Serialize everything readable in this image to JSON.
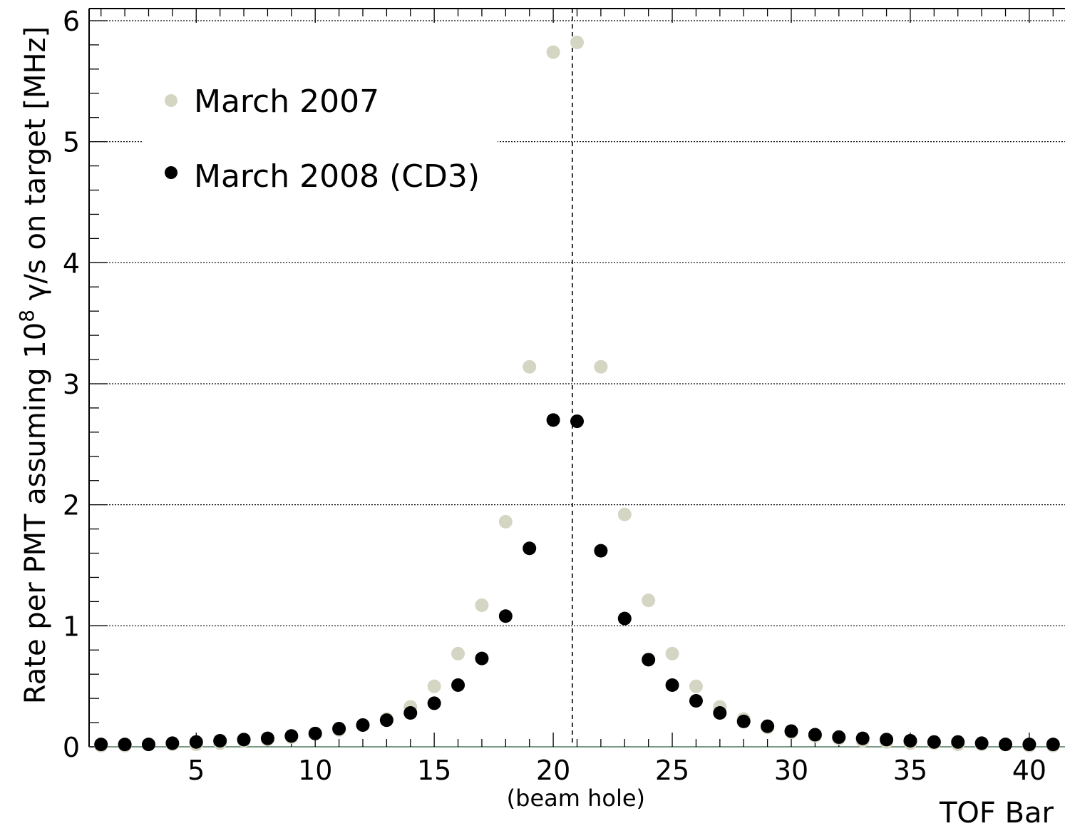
{
  "chart_data": {
    "type": "scatter",
    "xlabel": "TOF Bar",
    "ylabel_prefix": "Rate per PMT assuming 10",
    "ylabel_sup": "8",
    "ylabel_suffix": " γ/s on target [MHz]",
    "xlim": [
      0.5,
      41.5
    ],
    "ylim": [
      0,
      6.1
    ],
    "x_ticks": [
      5,
      10,
      15,
      20,
      25,
      30,
      35,
      40
    ],
    "y_ticks": [
      0,
      1,
      2,
      3,
      4,
      5,
      6
    ],
    "grid": "horizontal-dotted",
    "legend_position": "top-left",
    "annotation": {
      "text": "(beam hole)",
      "x": 20.8
    },
    "series": [
      {
        "name": "March 2007",
        "color": "#d5d5c4",
        "x": [
          1,
          2,
          3,
          4,
          5,
          6,
          7,
          8,
          9,
          10,
          11,
          12,
          13,
          14,
          15,
          16,
          17,
          18,
          19,
          20,
          21,
          22,
          23,
          24,
          25,
          26,
          27,
          28,
          29,
          30,
          31,
          32,
          33,
          34,
          35,
          36,
          37,
          38,
          39,
          40,
          41
        ],
        "y": [
          0.01,
          0.01,
          0.02,
          0.02,
          0.02,
          0.03,
          0.05,
          0.06,
          0.08,
          0.11,
          0.14,
          0.18,
          0.23,
          0.33,
          0.5,
          0.77,
          1.17,
          1.86,
          3.14,
          5.74,
          5.82,
          3.14,
          1.92,
          1.21,
          0.77,
          0.5,
          0.33,
          0.23,
          0.16,
          0.12,
          0.09,
          0.07,
          0.05,
          0.04,
          0.03,
          0.03,
          0.02,
          0.02,
          0.02,
          0.01,
          0.01
        ]
      },
      {
        "name": "March 2008 (CD3)",
        "color": "#000000",
        "x": [
          1,
          2,
          3,
          4,
          5,
          6,
          7,
          8,
          9,
          10,
          11,
          12,
          13,
          14,
          15,
          16,
          17,
          18,
          19,
          20,
          21,
          22,
          23,
          24,
          25,
          26,
          27,
          28,
          29,
          30,
          31,
          32,
          33,
          34,
          35,
          36,
          37,
          38,
          39,
          40,
          41
        ],
        "y": [
          0.02,
          0.02,
          0.02,
          0.03,
          0.04,
          0.05,
          0.06,
          0.07,
          0.09,
          0.11,
          0.15,
          0.18,
          0.22,
          0.28,
          0.36,
          0.51,
          0.73,
          1.08,
          1.64,
          2.7,
          2.69,
          1.62,
          1.06,
          0.72,
          0.51,
          0.38,
          0.28,
          0.21,
          0.17,
          0.13,
          0.1,
          0.08,
          0.07,
          0.06,
          0.05,
          0.04,
          0.04,
          0.03,
          0.02,
          0.02,
          0.02
        ]
      }
    ]
  }
}
